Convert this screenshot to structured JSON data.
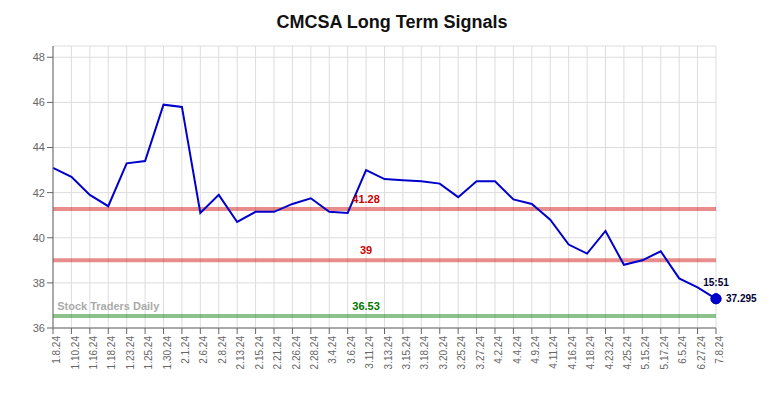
{
  "chart_data": {
    "type": "line",
    "title": "CMCSA Long Term Signals",
    "categories": [
      "1.8.24",
      "1.10.24",
      "1.16.24",
      "1.18.24",
      "1.23.24",
      "1.25.24",
      "1.30.24",
      "2.1.24",
      "2.6.24",
      "2.8.24",
      "2.13.24",
      "2.15.24",
      "2.21.24",
      "2.26.24",
      "2.28.24",
      "3.4.24",
      "3.6.24",
      "3.11.24",
      "3.13.24",
      "3.15.24",
      "3.18.24",
      "3.20.24",
      "3.25.24",
      "3.27.24",
      "4.2.24",
      "4.4.24",
      "4.9.24",
      "4.11.24",
      "4.16.24",
      "4.18.24",
      "4.23.24",
      "4.25.24",
      "5.15.24",
      "5.17.24",
      "6.5.24",
      "6.27.24",
      "7.8.24"
    ],
    "values": [
      43.1,
      42.7,
      41.9,
      41.4,
      43.3,
      43.4,
      45.9,
      45.8,
      41.1,
      41.9,
      40.7,
      41.15,
      41.15,
      41.5,
      41.75,
      41.15,
      41.1,
      43.0,
      42.6,
      42.55,
      42.5,
      42.4,
      41.8,
      42.5,
      42.5,
      41.7,
      41.5,
      40.8,
      39.7,
      39.3,
      40.3,
      38.8,
      39.0,
      39.4,
      38.2,
      37.8,
      37.295
    ],
    "color": "#0000cc",
    "ylim": [
      36,
      48.5
    ],
    "yticks": [
      36,
      38,
      40,
      42,
      44,
      46,
      48
    ],
    "grid": true,
    "hlines": [
      {
        "value": 41.28,
        "label": "41.28",
        "color": "#cc0000"
      },
      {
        "value": 39.0,
        "label": "39",
        "color": "#cc0000"
      },
      {
        "value": 36.53,
        "label": "36.53",
        "color": "#007700"
      }
    ],
    "annotations": [
      {
        "text": "15:51",
        "color": "#000033"
      },
      {
        "text": "37.295",
        "color": "#000033"
      }
    ],
    "watermark": "Stock Traders Daily"
  }
}
